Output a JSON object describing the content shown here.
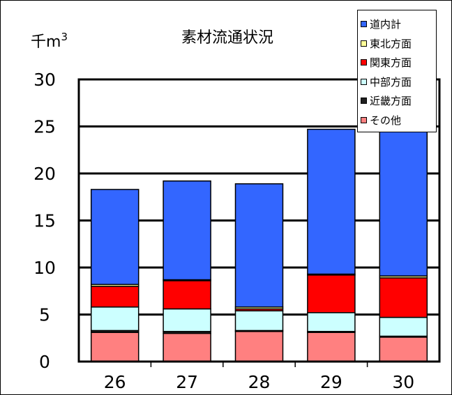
{
  "chart_data": {
    "type": "bar",
    "stacked": true,
    "title": "素材流通状況",
    "unit_label": "千m",
    "unit_superscript": "3",
    "categories": [
      "26",
      "27",
      "28",
      "29",
      "30"
    ],
    "ylim": [
      0,
      30
    ],
    "y_ticks": [
      "0",
      "5",
      "10",
      "15",
      "20",
      "25",
      "30"
    ],
    "grid": true,
    "legend_position": "top-right",
    "series": [
      {
        "name": "その他",
        "color": "#FF8080",
        "values": [
          3.1,
          3.0,
          3.2,
          3.1,
          2.6
        ]
      },
      {
        "name": "近畿方面",
        "color": "#202020",
        "values": [
          0.2,
          0.2,
          0.1,
          0.1,
          0.1
        ]
      },
      {
        "name": "中部方面",
        "color": "#CCFFFF",
        "values": [
          2.5,
          2.4,
          2.1,
          2.0,
          2.0
        ]
      },
      {
        "name": "関東方面",
        "color": "#FF0000",
        "values": [
          2.2,
          3.0,
          0.2,
          4.0,
          4.2
        ]
      },
      {
        "name": "東北方面",
        "color": "#FFFF99",
        "values": [
          0.2,
          0.1,
          0.2,
          0.1,
          0.2
        ]
      },
      {
        "name": "道内計",
        "color": "#3366FF",
        "values": [
          10.1,
          10.5,
          13.1,
          15.4,
          15.9
        ]
      }
    ]
  }
}
